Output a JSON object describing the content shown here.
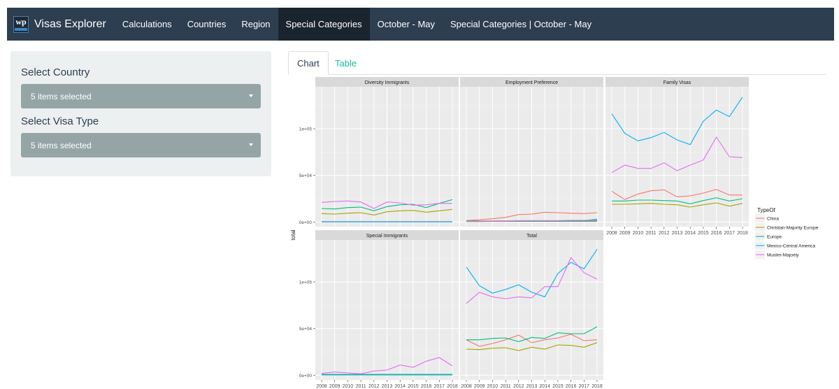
{
  "navbar": {
    "brand": "Visas Explorer",
    "logo_text": "wp",
    "items": [
      {
        "label": "Calculations",
        "active": false
      },
      {
        "label": "Countries",
        "active": false
      },
      {
        "label": "Region",
        "active": false
      },
      {
        "label": "Special Categories",
        "active": true
      },
      {
        "label": "October - May",
        "active": false
      },
      {
        "label": "Special Categories | October - May",
        "active": false
      }
    ]
  },
  "sidebar": {
    "country_label": "Select Country",
    "country_value": "5 items selected",
    "visa_label": "Select Visa Type",
    "visa_value": "5 items selected"
  },
  "tabs": [
    {
      "label": "Chart",
      "active": true
    },
    {
      "label": "Table",
      "active": false
    }
  ],
  "chart_data": {
    "type": "line",
    "ylabel": "total",
    "xlabel": "",
    "x": [
      2008,
      2009,
      2010,
      2011,
      2012,
      2013,
      2014,
      2015,
      2016,
      2017,
      2018
    ],
    "ylim": [
      -5000,
      145000
    ],
    "yticks": [
      {
        "value": 0,
        "label": "0e+00"
      },
      {
        "value": 50000,
        "label": "5e+04"
      },
      {
        "value": 100000,
        "label": "1e+05"
      }
    ],
    "legend": {
      "title": "TypeOf",
      "entries": [
        "China",
        "Christian-Majority Europe",
        "Europe",
        "Mexico-Central America",
        "Muslim-Majority"
      ]
    },
    "colors": {
      "China": "#f8766d",
      "Christian-Majority Europe": "#a3a500",
      "Europe": "#00bf7d",
      "Mexico-Central America": "#00b0f6",
      "Muslim-Majority": "#e76bf3"
    },
    "panels": [
      {
        "title": "Diversity Immigrants",
        "series": [
          {
            "name": "China",
            "values": [
              500,
              500,
              500,
              500,
              500,
              500,
              500,
              500,
              500,
              500,
              500
            ]
          },
          {
            "name": "Christian-Majority Europe",
            "values": [
              9000,
              8500,
              9500,
              10000,
              7500,
              11000,
              12000,
              12500,
              10500,
              12000,
              13500
            ]
          },
          {
            "name": "Europe",
            "values": [
              14500,
              14000,
              15500,
              16000,
              12000,
              16500,
              18500,
              19000,
              15500,
              20000,
              24000
            ]
          },
          {
            "name": "Mexico-Central America",
            "values": [
              200,
              200,
              200,
              200,
              200,
              200,
              200,
              200,
              200,
              200,
              200
            ]
          },
          {
            "name": "Muslim-Majority",
            "values": [
              21000,
              22000,
              22500,
              21500,
              14500,
              21500,
              20500,
              18000,
              18500,
              20000,
              20000
            ]
          }
        ]
      },
      {
        "title": "Employment Preference",
        "series": [
          {
            "name": "China",
            "values": [
              1500,
              2500,
              3500,
              5000,
              8000,
              8500,
              10500,
              10000,
              9500,
              9000,
              10000
            ]
          },
          {
            "name": "Christian-Majority Europe",
            "values": [
              500,
              500,
              600,
              600,
              600,
              600,
              600,
              600,
              600,
              600,
              700
            ]
          },
          {
            "name": "Europe",
            "values": [
              1000,
              1000,
              1000,
              1000,
              1000,
              1000,
              1000,
              1000,
              1000,
              1000,
              1200
            ]
          },
          {
            "name": "Mexico-Central America",
            "values": [
              1500,
              1200,
              1000,
              1000,
              1200,
              1200,
              1200,
              1200,
              1500,
              1500,
              3000
            ]
          },
          {
            "name": "Muslim-Majority",
            "values": [
              1000,
              1000,
              1200,
              1200,
              1500,
              1500,
              1500,
              1500,
              1800,
              1800,
              2000
            ]
          }
        ]
      },
      {
        "title": "Family Visas",
        "series": [
          {
            "name": "China",
            "values": [
              33000,
              24000,
              30000,
              33500,
              34500,
              27000,
              28000,
              31000,
              35000,
              29000,
              29000
            ]
          },
          {
            "name": "Christian-Majority Europe",
            "values": [
              19000,
              19000,
              19500,
              20000,
              19000,
              18500,
              16000,
              18500,
              20500,
              17000,
              20000
            ]
          },
          {
            "name": "Europe",
            "values": [
              22500,
              22500,
              23500,
              23500,
              23000,
              22500,
              19500,
              23000,
              26000,
              22500,
              25000
            ]
          },
          {
            "name": "Mexico-Central America",
            "values": [
              116000,
              95000,
              87000,
              90500,
              96000,
              88000,
              83000,
              108000,
              120000,
              113000,
              134000
            ]
          },
          {
            "name": "Muslim-Majority",
            "values": [
              53000,
              61000,
              57500,
              57500,
              63500,
              55000,
              61000,
              66500,
              91000,
              70000,
              69000
            ]
          }
        ]
      },
      {
        "title": "Special Immigrants",
        "series": [
          {
            "name": "China",
            "values": [
              300,
              300,
              300,
              300,
              300,
              300,
              300,
              300,
              300,
              300,
              300
            ]
          },
          {
            "name": "Christian-Majority Europe",
            "values": [
              500,
              500,
              500,
              500,
              500,
              500,
              500,
              500,
              500,
              500,
              500
            ]
          },
          {
            "name": "Europe",
            "values": [
              500,
              500,
              500,
              500,
              500,
              500,
              500,
              500,
              500,
              500,
              500
            ]
          },
          {
            "name": "Mexico-Central America",
            "values": [
              1000,
              1000,
              1000,
              1000,
              1000,
              1000,
              1000,
              1000,
              1000,
              1000,
              1000
            ]
          },
          {
            "name": "Muslim-Majority",
            "values": [
              2000,
              3500,
              2500,
              1500,
              4500,
              5500,
              11000,
              8500,
              15000,
              19000,
              10000
            ]
          }
        ]
      },
      {
        "title": "Total",
        "series": [
          {
            "name": "China",
            "values": [
              38000,
              31000,
              34000,
              38000,
              43000,
              35000,
              38000,
              40000,
              44000,
              37000,
              38000
            ]
          },
          {
            "name": "Christian-Majority Europe",
            "values": [
              28000,
              27500,
              29000,
              29500,
              26500,
              30000,
              28000,
              32500,
              32000,
              30000,
              35000
            ]
          },
          {
            "name": "Europe",
            "values": [
              38000,
              38000,
              39500,
              40000,
              36000,
              40500,
              39500,
              45500,
              44500,
              44500,
              52000
            ]
          },
          {
            "name": "Mexico-Central America",
            "values": [
              116000,
              96000,
              88000,
              92000,
              97000,
              89000,
              84000,
              109000,
              121000,
              114000,
              135000
            ]
          },
          {
            "name": "Muslim-Majority",
            "values": [
              77000,
              89000,
              84000,
              82000,
              84000,
              83000,
              95000,
              95000,
              126000,
              110000,
              103000
            ]
          }
        ]
      }
    ]
  }
}
